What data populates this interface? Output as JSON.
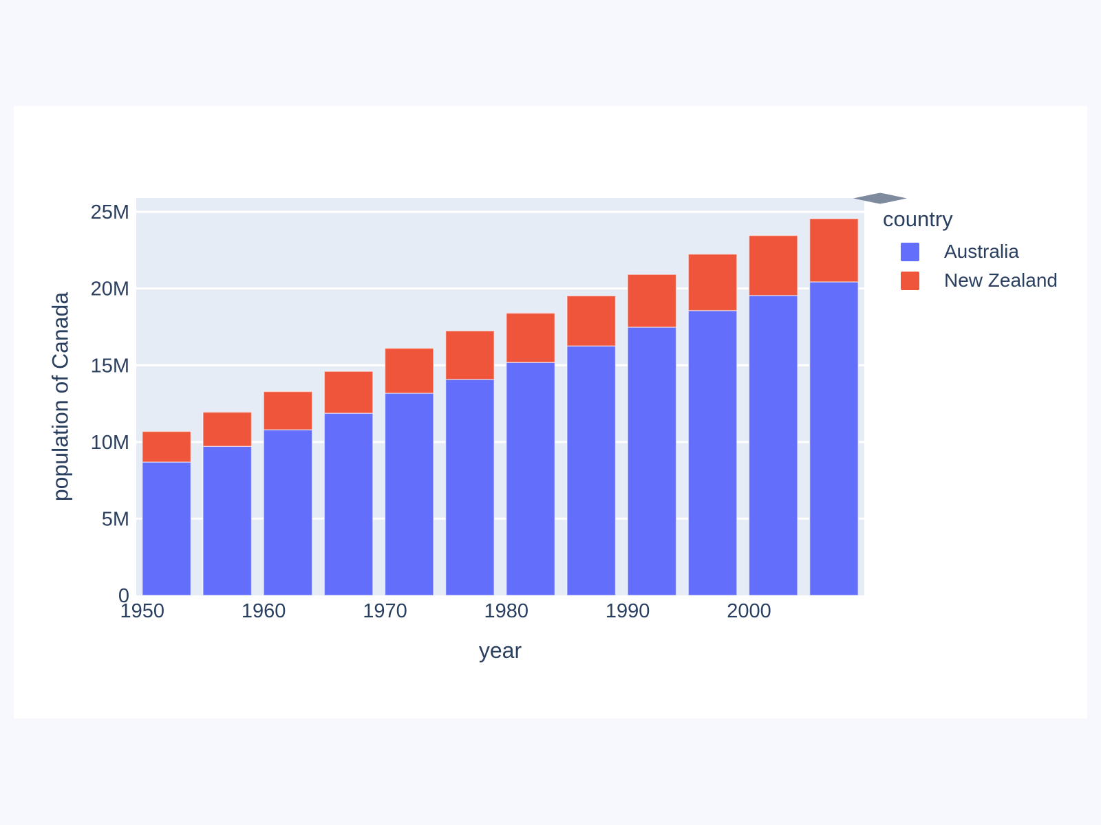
{
  "chart_data": {
    "type": "bar",
    "stacked": true,
    "title": "",
    "xlabel": "year",
    "ylabel": "population of Canada",
    "legend_title": "country",
    "legend_position": "right-top",
    "grid": "horizontal-white",
    "x": [
      1952,
      1957,
      1962,
      1967,
      1972,
      1977,
      1982,
      1987,
      1992,
      1997,
      2002,
      2007
    ],
    "series": [
      {
        "name": "Australia",
        "color": "#636EFA",
        "values": [
          8691212,
          9712569,
          10794968,
          11872264,
          13177000,
          14074100,
          15184200,
          16257249,
          17481977,
          18565243,
          19546792,
          20434176
        ]
      },
      {
        "name": "New Zealand",
        "color": "#EF553B",
        "values": [
          1994794,
          2229407,
          2488550,
          2728150,
          2929100,
          3164900,
          3210650,
          3266350,
          3437674,
          3676187,
          3908037,
          4115771
        ]
      }
    ],
    "xlim": [
      1949.5,
      2009.5
    ],
    "ylim": [
      0,
      25900000
    ],
    "bar_width_years": 4,
    "x_ticks": [
      {
        "value": 1950,
        "label": "1950"
      },
      {
        "value": 1960,
        "label": "1960"
      },
      {
        "value": 1970,
        "label": "1970"
      },
      {
        "value": 1980,
        "label": "1980"
      },
      {
        "value": 1990,
        "label": "1990"
      },
      {
        "value": 2000,
        "label": "2000"
      }
    ],
    "y_ticks": [
      {
        "value": 0,
        "label": "0"
      },
      {
        "value": 5000000,
        "label": "5M"
      },
      {
        "value": 10000000,
        "label": "10M"
      },
      {
        "value": 15000000,
        "label": "15M"
      },
      {
        "value": 20000000,
        "label": "20M"
      },
      {
        "value": 25000000,
        "label": "25M"
      }
    ],
    "colors": {
      "page_background": "#F6F8FD",
      "card_background": "#FFFFFF",
      "plot_background": "#E5ECF6",
      "gridline": "#FFFFFF",
      "text": "#2A3F5F",
      "modebar_icon": "#5F6E87"
    }
  }
}
